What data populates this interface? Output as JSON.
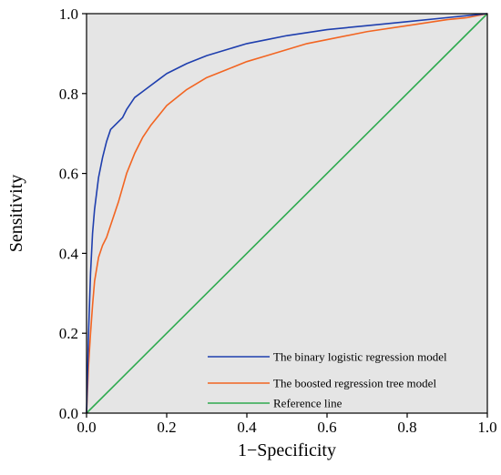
{
  "chart_data": {
    "type": "line",
    "title": "",
    "xlabel": "1−Specificity",
    "ylabel": "Sensitivity",
    "xlim": [
      0,
      1
    ],
    "ylim": [
      0,
      1
    ],
    "x_ticks": [
      "0.0",
      "0.2",
      "0.4",
      "0.6",
      "0.8",
      "1.0"
    ],
    "y_ticks": [
      "0.0",
      "0.2",
      "0.4",
      "0.6",
      "0.8",
      "1.0"
    ],
    "grid": false,
    "plot_background": "#e5e5e5",
    "legend_position": "bottom-right",
    "series": [
      {
        "name": "The binary logistic regression model",
        "color": "#1f3fae",
        "x": [
          0,
          0.005,
          0.01,
          0.015,
          0.02,
          0.03,
          0.04,
          0.05,
          0.06,
          0.07,
          0.08,
          0.09,
          0.1,
          0.12,
          0.14,
          0.16,
          0.18,
          0.2,
          0.25,
          0.3,
          0.35,
          0.4,
          0.45,
          0.5,
          0.6,
          0.7,
          0.8,
          0.9,
          1.0
        ],
        "y": [
          0,
          0.2,
          0.35,
          0.45,
          0.51,
          0.59,
          0.64,
          0.68,
          0.71,
          0.72,
          0.73,
          0.74,
          0.76,
          0.79,
          0.805,
          0.82,
          0.835,
          0.85,
          0.875,
          0.895,
          0.91,
          0.925,
          0.935,
          0.945,
          0.96,
          0.97,
          0.98,
          0.99,
          1.0
        ]
      },
      {
        "name": "The boosted regression tree model",
        "color": "#f26522",
        "x": [
          0,
          0.005,
          0.01,
          0.015,
          0.02,
          0.03,
          0.04,
          0.05,
          0.06,
          0.08,
          0.1,
          0.12,
          0.14,
          0.16,
          0.18,
          0.2,
          0.25,
          0.3,
          0.35,
          0.4,
          0.45,
          0.5,
          0.55,
          0.6,
          0.7,
          0.8,
          0.9,
          0.95,
          1.0
        ],
        "y": [
          0,
          0.12,
          0.2,
          0.27,
          0.33,
          0.39,
          0.42,
          0.44,
          0.47,
          0.53,
          0.6,
          0.65,
          0.69,
          0.72,
          0.745,
          0.77,
          0.81,
          0.84,
          0.86,
          0.88,
          0.895,
          0.91,
          0.925,
          0.935,
          0.955,
          0.97,
          0.985,
          0.99,
          1.0
        ]
      },
      {
        "name": "Reference line",
        "color": "#2eaa4f",
        "x": [
          0,
          1
        ],
        "y": [
          0,
          1
        ]
      }
    ]
  }
}
